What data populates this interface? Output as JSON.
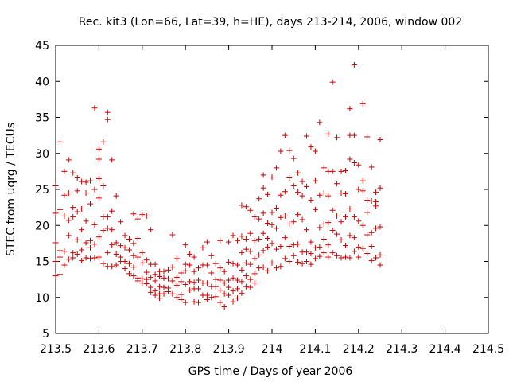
{
  "chart_data": {
    "type": "scatter",
    "title": "Rec. kit3 (Lon=66, Lat=39, h=HE), days 213-214, 2006, window 002",
    "xlabel": "GPS time / Days of year 2006",
    "ylabel": "STEC from uqrg / TECUs",
    "xlim": [
      213.5,
      214.5
    ],
    "ylim": [
      5,
      45
    ],
    "xticks": [
      213.5,
      213.6,
      213.7,
      213.8,
      213.9,
      214.0,
      214.1,
      214.2,
      214.3,
      214.4,
      214.5
    ],
    "xtick_labels": [
      "213.5",
      "213.6",
      "213.7",
      "213.8",
      "213.9",
      "214",
      "214.1",
      "214.2",
      "214.3",
      "214.4",
      "214.5"
    ],
    "yticks": [
      5,
      10,
      15,
      20,
      25,
      30,
      35,
      40,
      45
    ],
    "ytick_labels": [
      "5",
      "10",
      "15",
      "20",
      "25",
      "30",
      "35",
      "40",
      "45"
    ],
    "grid": false,
    "legend": "none",
    "marker": "plus",
    "color": "#cc0000",
    "points": [
      [
        213.5,
        25.5
      ],
      [
        213.5,
        21.7
      ],
      [
        213.5,
        17.6
      ],
      [
        213.5,
        15.0
      ],
      [
        213.5,
        13.0
      ],
      [
        213.51,
        31.6
      ],
      [
        213.51,
        22.2
      ],
      [
        213.51,
        16.5
      ],
      [
        213.51,
        15.6
      ],
      [
        213.51,
        13.2
      ],
      [
        213.52,
        27.5
      ],
      [
        213.52,
        24.2
      ],
      [
        213.52,
        21.3
      ],
      [
        213.52,
        16.4
      ],
      [
        213.52,
        14.5
      ],
      [
        213.53,
        29.1
      ],
      [
        213.53,
        24.5
      ],
      [
        213.53,
        20.7
      ],
      [
        213.53,
        18.6
      ],
      [
        213.53,
        15.3
      ],
      [
        213.54,
        27.3
      ],
      [
        213.54,
        22.5
      ],
      [
        213.54,
        21.2
      ],
      [
        213.54,
        16.2
      ],
      [
        213.54,
        15.5
      ],
      [
        213.55,
        26.6
      ],
      [
        213.55,
        24.8
      ],
      [
        213.55,
        21.9
      ],
      [
        213.55,
        18.0
      ],
      [
        213.55,
        16.0
      ],
      [
        213.56,
        26.1
      ],
      [
        213.56,
        22.3
      ],
      [
        213.56,
        19.4
      ],
      [
        213.56,
        16.6
      ],
      [
        213.56,
        15.1
      ],
      [
        213.57,
        26.0
      ],
      [
        213.57,
        24.5
      ],
      [
        213.57,
        20.6
      ],
      [
        213.57,
        17.6
      ],
      [
        213.57,
        15.5
      ],
      [
        213.58,
        26.2
      ],
      [
        213.58,
        23.0
      ],
      [
        213.58,
        17.9
      ],
      [
        213.58,
        16.9
      ],
      [
        213.58,
        15.4
      ],
      [
        213.59,
        36.3
      ],
      [
        213.59,
        25.0
      ],
      [
        213.59,
        20.1
      ],
      [
        213.59,
        17.4
      ],
      [
        213.59,
        15.5
      ],
      [
        213.6,
        30.6
      ],
      [
        213.6,
        29.2
      ],
      [
        213.6,
        26.5
      ],
      [
        213.6,
        23.8
      ],
      [
        213.6,
        18.4
      ],
      [
        213.6,
        15.6
      ],
      [
        213.61,
        31.6
      ],
      [
        213.61,
        25.5
      ],
      [
        213.61,
        21.2
      ],
      [
        213.61,
        19.3
      ],
      [
        213.61,
        14.7
      ],
      [
        213.62,
        35.7
      ],
      [
        213.62,
        34.7
      ],
      [
        213.62,
        21.2
      ],
      [
        213.62,
        19.6
      ],
      [
        213.62,
        16.2
      ],
      [
        213.62,
        14.3
      ],
      [
        213.63,
        29.1
      ],
      [
        213.63,
        22.0
      ],
      [
        213.63,
        19.4
      ],
      [
        213.63,
        17.3
      ],
      [
        213.63,
        14.3
      ],
      [
        213.64,
        24.1
      ],
      [
        213.64,
        17.6
      ],
      [
        213.64,
        16.0
      ],
      [
        213.64,
        14.5
      ],
      [
        213.65,
        20.5
      ],
      [
        213.65,
        17.2
      ],
      [
        213.65,
        15.6
      ],
      [
        213.65,
        15.0
      ],
      [
        213.66,
        18.6
      ],
      [
        213.66,
        16.9
      ],
      [
        213.66,
        15.0
      ],
      [
        213.66,
        14.0
      ],
      [
        213.67,
        18.1
      ],
      [
        213.67,
        16.6
      ],
      [
        213.67,
        14.7
      ],
      [
        213.67,
        13.3
      ],
      [
        213.68,
        21.6
      ],
      [
        213.68,
        17.5
      ],
      [
        213.68,
        15.8
      ],
      [
        213.68,
        14.2
      ],
      [
        213.68,
        13.0
      ],
      [
        213.69,
        20.9
      ],
      [
        213.69,
        18.2
      ],
      [
        213.69,
        15.6
      ],
      [
        213.69,
        12.7
      ],
      [
        213.69,
        12.3
      ],
      [
        213.7,
        21.5
      ],
      [
        213.7,
        16.2
      ],
      [
        213.7,
        14.8
      ],
      [
        213.7,
        12.6
      ],
      [
        213.7,
        12.0
      ],
      [
        213.71,
        21.3
      ],
      [
        213.71,
        15.2
      ],
      [
        213.71,
        13.5
      ],
      [
        213.71,
        12.5
      ],
      [
        213.71,
        11.9
      ],
      [
        213.72,
        19.4
      ],
      [
        213.72,
        14.6
      ],
      [
        213.72,
        12.8
      ],
      [
        213.72,
        11.4
      ],
      [
        213.72,
        10.7
      ],
      [
        213.73,
        14.6
      ],
      [
        213.73,
        13.2
      ],
      [
        213.73,
        12.3
      ],
      [
        213.73,
        10.9
      ],
      [
        213.73,
        10.3
      ],
      [
        213.74,
        13.6
      ],
      [
        213.74,
        12.9
      ],
      [
        213.74,
        11.5
      ],
      [
        213.74,
        10.5
      ],
      [
        213.74,
        9.9
      ],
      [
        213.75,
        13.6
      ],
      [
        213.75,
        12.7
      ],
      [
        213.75,
        11.4
      ],
      [
        213.75,
        10.5
      ],
      [
        213.76,
        13.8
      ],
      [
        213.76,
        12.6
      ],
      [
        213.76,
        11.3
      ],
      [
        213.76,
        10.8
      ],
      [
        213.77,
        18.7
      ],
      [
        213.77,
        14.2
      ],
      [
        213.77,
        12.3
      ],
      [
        213.77,
        10.5
      ],
      [
        213.78,
        15.4
      ],
      [
        213.78,
        12.8
      ],
      [
        213.78,
        11.7
      ],
      [
        213.78,
        10.0
      ],
      [
        213.79,
        13.4
      ],
      [
        213.79,
        12.2
      ],
      [
        213.79,
        10.4
      ],
      [
        213.79,
        9.7
      ],
      [
        213.8,
        17.3
      ],
      [
        213.8,
        14.6
      ],
      [
        213.8,
        13.7
      ],
      [
        213.8,
        11.8
      ],
      [
        213.8,
        9.3
      ],
      [
        213.81,
        16.0
      ],
      [
        213.81,
        14.5
      ],
      [
        213.81,
        12.2
      ],
      [
        213.81,
        11.0
      ],
      [
        213.82,
        15.6
      ],
      [
        213.82,
        13.6
      ],
      [
        213.82,
        12.1
      ],
      [
        213.82,
        11.2
      ],
      [
        213.82,
        9.4
      ],
      [
        213.83,
        14.1
      ],
      [
        213.83,
        12.4
      ],
      [
        213.83,
        11.2
      ],
      [
        213.83,
        9.3
      ],
      [
        213.84,
        16.9
      ],
      [
        213.84,
        14.5
      ],
      [
        213.84,
        12.0
      ],
      [
        213.84,
        10.3
      ],
      [
        213.85,
        17.7
      ],
      [
        213.85,
        14.5
      ],
      [
        213.85,
        12.0
      ],
      [
        213.85,
        10.3
      ],
      [
        213.85,
        9.7
      ],
      [
        213.86,
        15.8
      ],
      [
        213.86,
        13.4
      ],
      [
        213.86,
        11.5
      ],
      [
        213.86,
        10.0
      ],
      [
        213.87,
        14.7
      ],
      [
        213.87,
        12.5
      ],
      [
        213.87,
        11.5
      ],
      [
        213.87,
        10.1
      ],
      [
        213.88,
        17.9
      ],
      [
        213.88,
        14.1
      ],
      [
        213.88,
        12.4
      ],
      [
        213.88,
        11.0
      ],
      [
        213.88,
        9.3
      ],
      [
        213.89,
        13.6
      ],
      [
        213.89,
        12.0
      ],
      [
        213.89,
        10.5
      ],
      [
        213.89,
        8.7
      ],
      [
        213.9,
        17.7
      ],
      [
        213.9,
        14.9
      ],
      [
        213.9,
        12.4
      ],
      [
        213.9,
        11.4
      ],
      [
        213.9,
        10.3
      ],
      [
        213.91,
        18.6
      ],
      [
        213.91,
        14.7
      ],
      [
        213.91,
        12.7
      ],
      [
        213.91,
        10.9
      ],
      [
        213.91,
        9.4
      ],
      [
        213.92,
        17.9
      ],
      [
        213.92,
        14.5
      ],
      [
        213.92,
        12.4
      ],
      [
        213.92,
        11.2
      ],
      [
        213.92,
        9.9
      ],
      [
        213.93,
        22.8
      ],
      [
        213.93,
        18.5
      ],
      [
        213.93,
        16.2
      ],
      [
        213.93,
        13.8
      ],
      [
        213.93,
        12.2
      ],
      [
        213.93,
        10.6
      ],
      [
        213.94,
        22.6
      ],
      [
        213.94,
        18.1
      ],
      [
        213.94,
        16.7
      ],
      [
        213.94,
        14.8
      ],
      [
        213.94,
        13.0
      ],
      [
        213.94,
        11.5
      ],
      [
        213.95,
        22.1
      ],
      [
        213.95,
        18.9
      ],
      [
        213.95,
        16.4
      ],
      [
        213.95,
        14.6
      ],
      [
        213.95,
        12.5
      ],
      [
        213.95,
        11.4
      ],
      [
        213.96,
        21.2
      ],
      [
        213.96,
        17.9
      ],
      [
        213.96,
        15.4
      ],
      [
        213.96,
        13.3
      ],
      [
        213.96,
        12.0
      ],
      [
        213.97,
        23.7
      ],
      [
        213.97,
        20.9
      ],
      [
        213.97,
        18.1
      ],
      [
        213.97,
        15.9
      ],
      [
        213.97,
        14.1
      ],
      [
        213.98,
        27.0
      ],
      [
        213.98,
        25.2
      ],
      [
        213.98,
        21.7
      ],
      [
        213.98,
        18.9
      ],
      [
        213.98,
        16.5
      ],
      [
        213.98,
        14.2
      ],
      [
        213.99,
        24.3
      ],
      [
        213.99,
        20.3
      ],
      [
        213.99,
        18.2
      ],
      [
        213.99,
        17.0
      ],
      [
        213.99,
        13.7
      ],
      [
        214.0,
        26.7
      ],
      [
        214.0,
        21.8
      ],
      [
        214.0,
        20.1
      ],
      [
        214.0,
        17.5
      ],
      [
        214.0,
        14.8
      ],
      [
        214.01,
        28.0
      ],
      [
        214.01,
        22.4
      ],
      [
        214.01,
        19.6
      ],
      [
        214.01,
        16.7
      ],
      [
        214.01,
        14.1
      ],
      [
        214.02,
        30.3
      ],
      [
        214.02,
        24.2
      ],
      [
        214.02,
        21.1
      ],
      [
        214.02,
        17.1
      ],
      [
        214.02,
        14.3
      ],
      [
        214.03,
        32.5
      ],
      [
        214.03,
        24.7
      ],
      [
        214.03,
        21.3
      ],
      [
        214.03,
        18.3
      ],
      [
        214.03,
        15.4
      ],
      [
        214.04,
        30.4
      ],
      [
        214.04,
        26.6
      ],
      [
        214.04,
        20.2
      ],
      [
        214.04,
        17.1
      ],
      [
        214.04,
        15.0
      ],
      [
        214.05,
        29.3
      ],
      [
        214.05,
        25.5
      ],
      [
        214.05,
        20.5
      ],
      [
        214.05,
        17.3
      ],
      [
        214.05,
        15.8
      ],
      [
        214.06,
        27.3
      ],
      [
        214.06,
        24.6
      ],
      [
        214.06,
        21.5
      ],
      [
        214.06,
        17.4
      ],
      [
        214.06,
        14.9
      ],
      [
        214.07,
        26.1
      ],
      [
        214.07,
        24.1
      ],
      [
        214.07,
        20.8
      ],
      [
        214.07,
        16.3
      ],
      [
        214.07,
        14.7
      ],
      [
        214.08,
        32.4
      ],
      [
        214.08,
        25.4
      ],
      [
        214.08,
        19.4
      ],
      [
        214.08,
        16.3
      ],
      [
        214.08,
        15.0
      ],
      [
        214.09,
        30.9
      ],
      [
        214.09,
        23.5
      ],
      [
        214.09,
        17.7
      ],
      [
        214.09,
        16.1
      ],
      [
        214.09,
        14.6
      ],
      [
        214.1,
        30.3
      ],
      [
        214.1,
        26.2
      ],
      [
        214.1,
        22.2
      ],
      [
        214.1,
        16.9
      ],
      [
        214.1,
        15.4
      ],
      [
        214.11,
        34.3
      ],
      [
        214.11,
        24.2
      ],
      [
        214.11,
        19.7
      ],
      [
        214.11,
        17.0
      ],
      [
        214.11,
        15.7
      ],
      [
        214.12,
        28.0
      ],
      [
        214.12,
        24.5
      ],
      [
        214.12,
        20.2
      ],
      [
        214.12,
        18.1
      ],
      [
        214.12,
        16.2
      ],
      [
        214.13,
        32.7
      ],
      [
        214.13,
        27.5
      ],
      [
        214.13,
        24.1
      ],
      [
        214.13,
        20.4
      ],
      [
        214.13,
        17.3
      ],
      [
        214.13,
        15.6
      ],
      [
        214.14,
        39.9
      ],
      [
        214.14,
        27.5
      ],
      [
        214.14,
        22.1
      ],
      [
        214.14,
        19.3
      ],
      [
        214.14,
        16.2
      ],
      [
        214.15,
        32.2
      ],
      [
        214.15,
        25.8
      ],
      [
        214.15,
        21.3
      ],
      [
        214.15,
        18.8
      ],
      [
        214.15,
        15.8
      ],
      [
        214.16,
        27.5
      ],
      [
        214.16,
        24.5
      ],
      [
        214.16,
        20.5
      ],
      [
        214.16,
        18.0
      ],
      [
        214.16,
        15.5
      ],
      [
        214.17,
        27.6
      ],
      [
        214.17,
        24.4
      ],
      [
        214.17,
        21.2
      ],
      [
        214.17,
        17.2
      ],
      [
        214.17,
        15.6
      ],
      [
        214.18,
        36.2
      ],
      [
        214.18,
        32.5
      ],
      [
        214.18,
        29.2
      ],
      [
        214.18,
        22.3
      ],
      [
        214.18,
        18.6
      ],
      [
        214.18,
        15.5
      ],
      [
        214.19,
        42.3
      ],
      [
        214.19,
        32.5
      ],
      [
        214.19,
        28.7
      ],
      [
        214.19,
        21.2
      ],
      [
        214.19,
        18.3
      ],
      [
        214.19,
        16.4
      ],
      [
        214.2,
        28.4
      ],
      [
        214.2,
        25.0
      ],
      [
        214.2,
        20.6
      ],
      [
        214.2,
        17.0
      ],
      [
        214.2,
        15.6
      ],
      [
        214.21,
        36.9
      ],
      [
        214.21,
        26.2
      ],
      [
        214.21,
        24.8
      ],
      [
        214.21,
        20.0
      ],
      [
        214.21,
        16.8
      ],
      [
        214.22,
        32.3
      ],
      [
        214.22,
        23.5
      ],
      [
        214.22,
        21.8
      ],
      [
        214.22,
        18.7
      ],
      [
        214.22,
        16.1
      ],
      [
        214.23,
        28.1
      ],
      [
        214.23,
        23.4
      ],
      [
        214.23,
        19.0
      ],
      [
        214.23,
        17.1
      ],
      [
        214.23,
        15.1
      ],
      [
        214.24,
        24.6
      ],
      [
        214.24,
        23.3
      ],
      [
        214.24,
        22.7
      ],
      [
        214.24,
        19.6
      ],
      [
        214.24,
        15.5
      ],
      [
        214.25,
        31.9
      ],
      [
        214.25,
        25.2
      ],
      [
        214.25,
        19.8
      ],
      [
        214.25,
        15.9
      ],
      [
        214.25,
        14.5
      ]
    ]
  }
}
